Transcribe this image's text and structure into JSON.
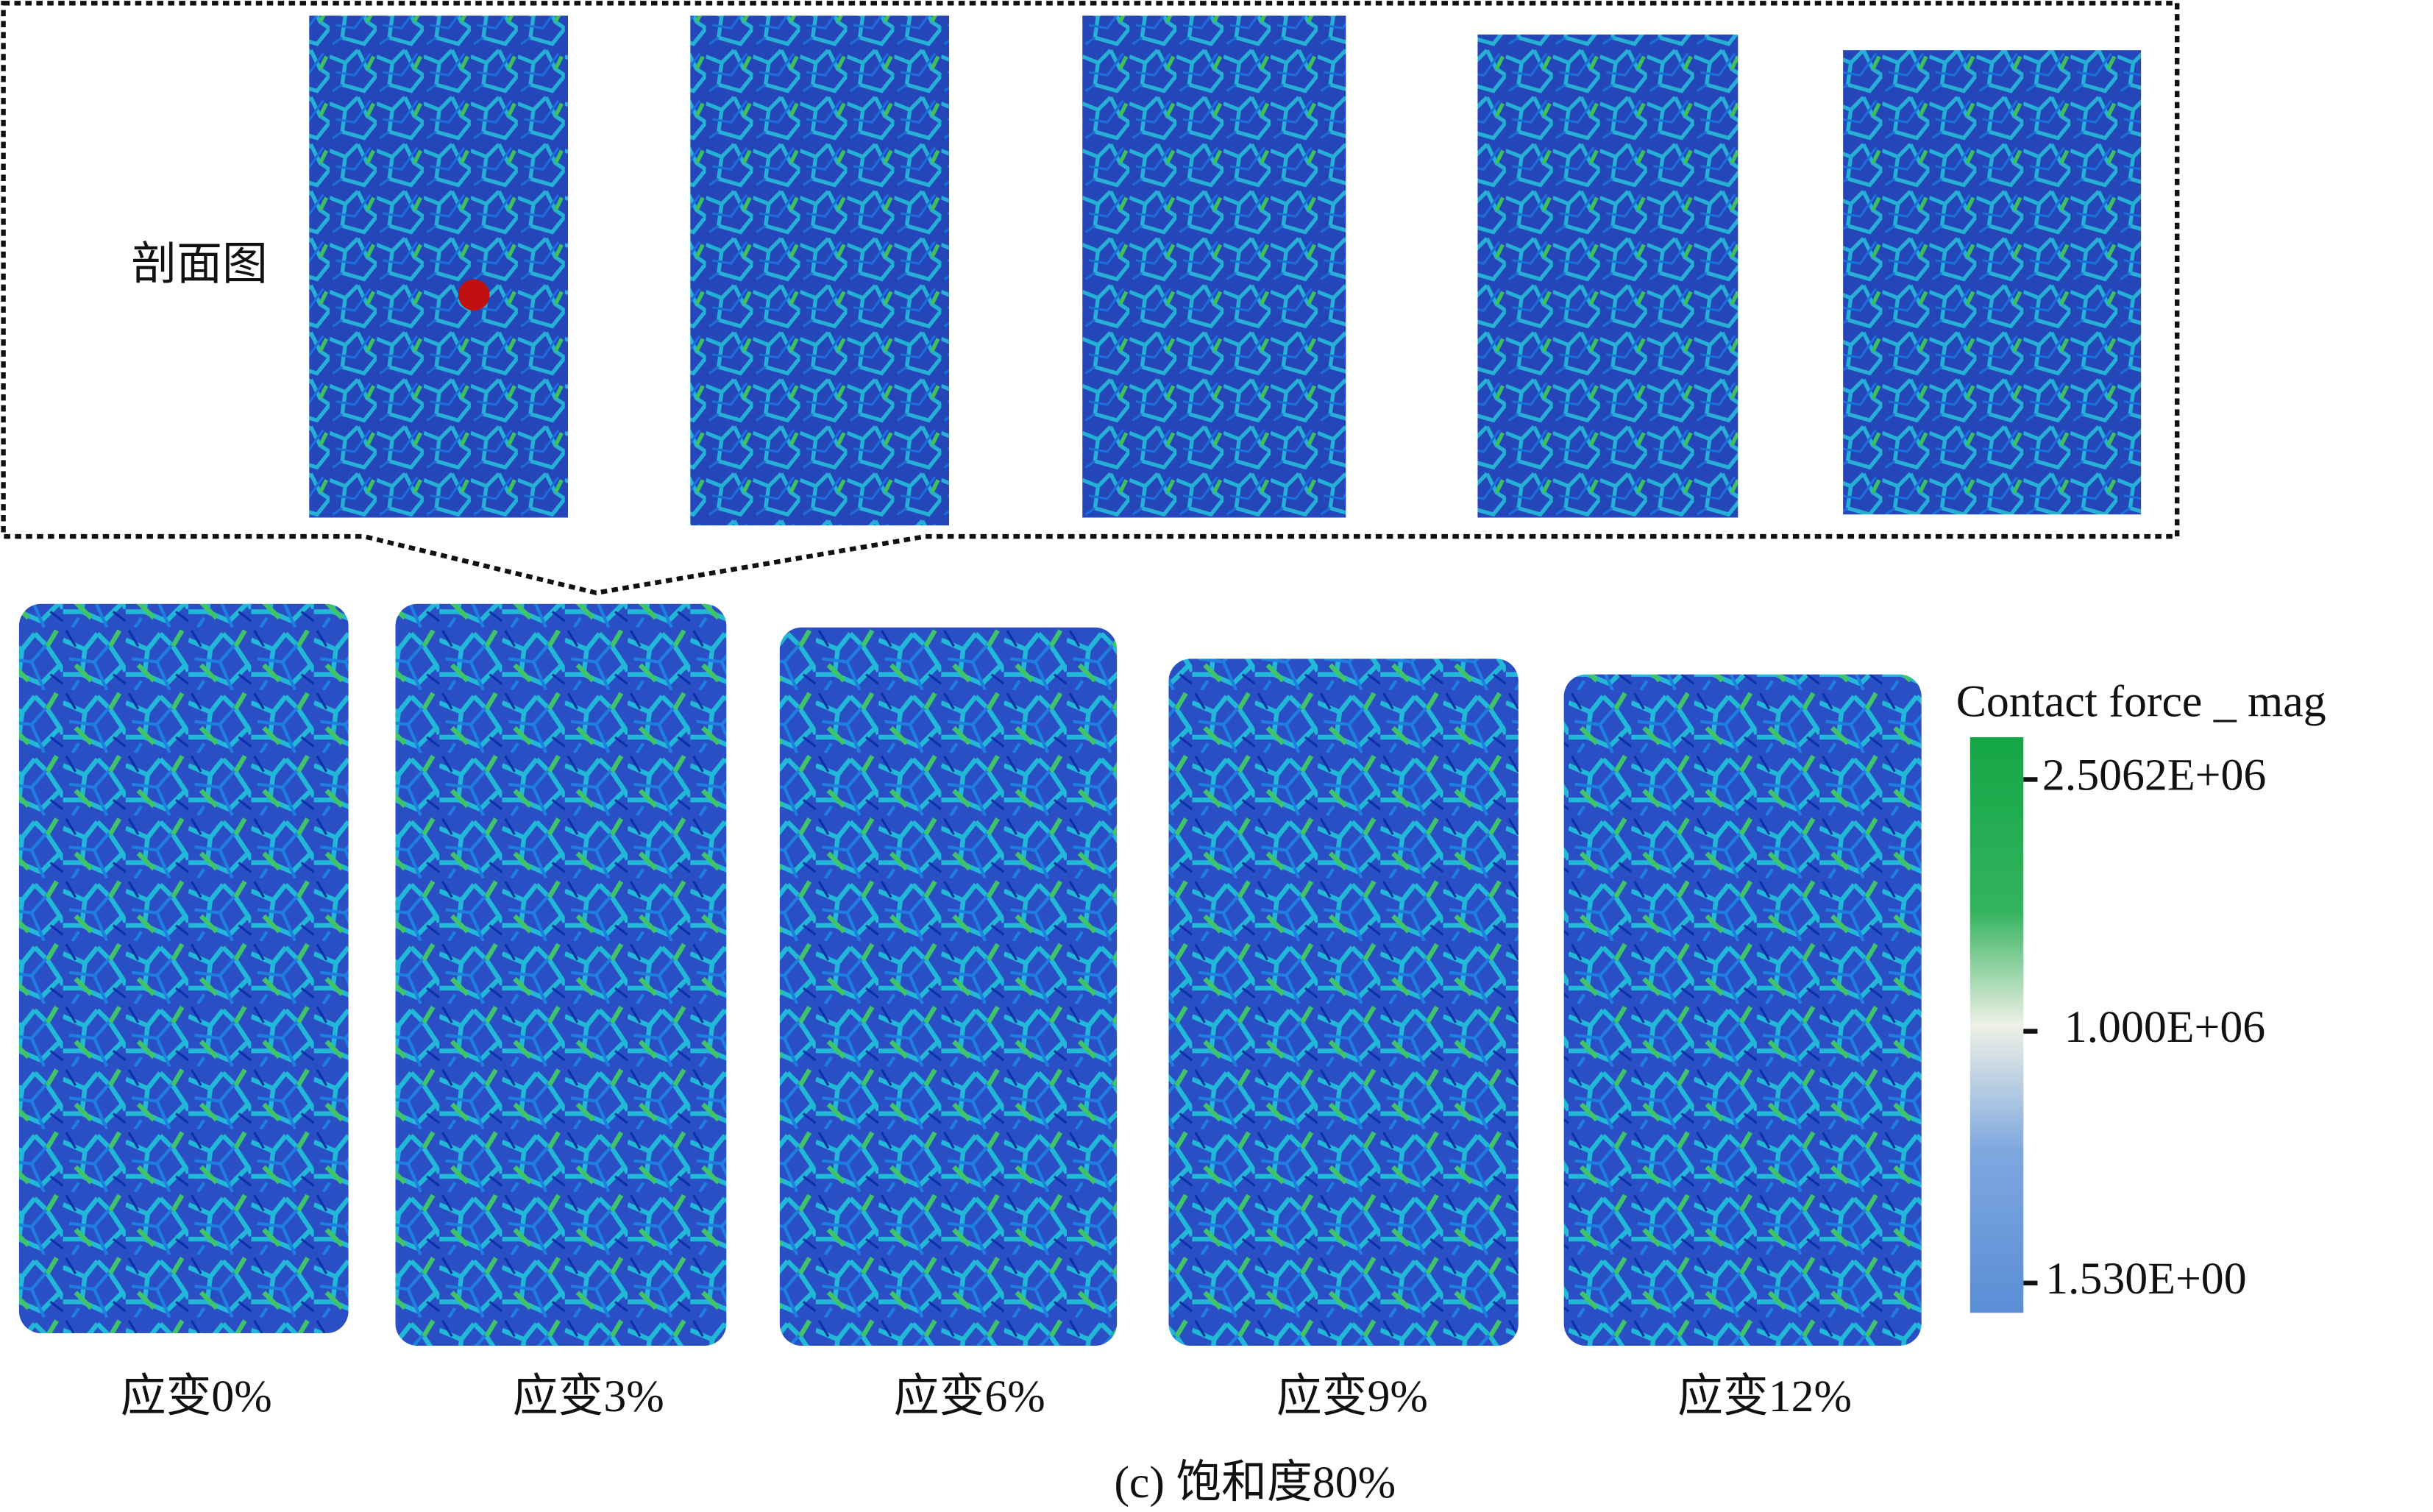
{
  "figure": {
    "caption": "(c) 饱和度80%",
    "section_label": "剖面图",
    "samples": [
      "应变0%",
      "应变3%",
      "应变6%",
      "应变9%",
      "应变12%"
    ],
    "colorbar": {
      "title": "Contact force _ mag",
      "ticks": [
        "2.5062E+06",
        "1.000E+06",
        "1.530E+00"
      ]
    }
  }
}
